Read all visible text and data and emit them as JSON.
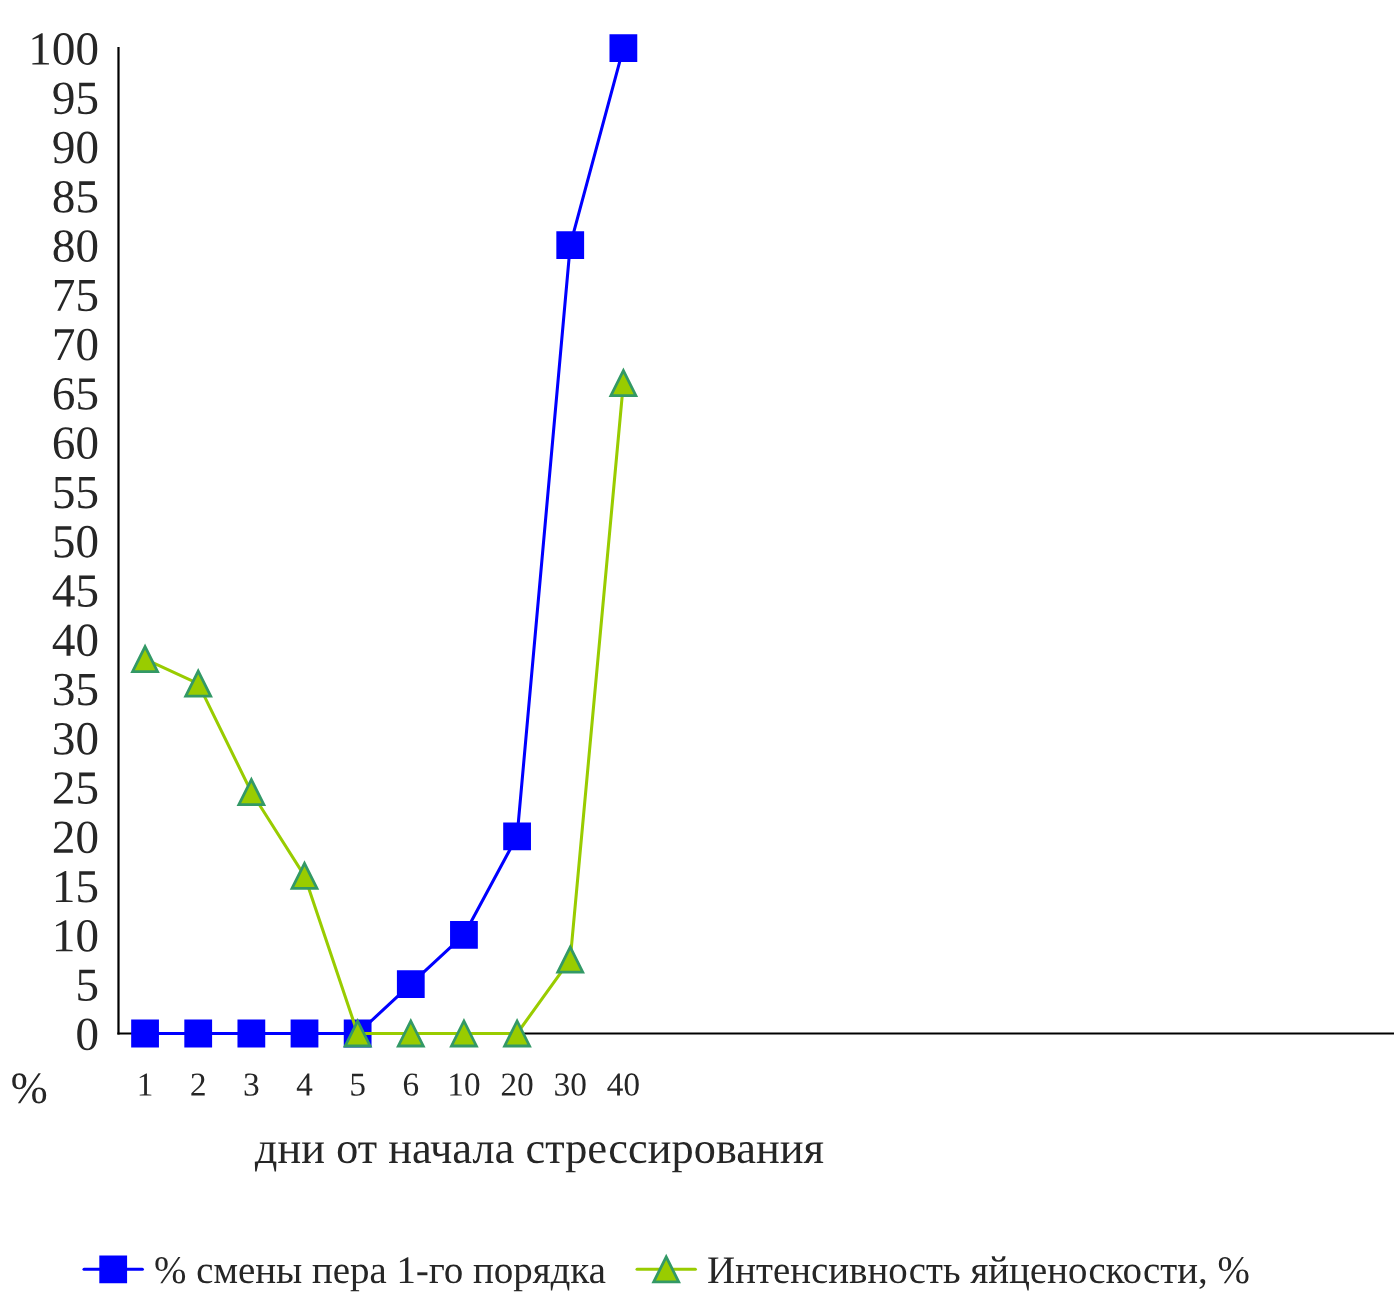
{
  "chart_data": {
    "type": "line",
    "xlabel": "дни от начала стрессирования",
    "ylabel": "%",
    "categories": [
      "1",
      "2",
      "3",
      "4",
      "5",
      "6",
      "10",
      "20",
      "30",
      "40",
      null,
      null,
      null,
      null,
      null,
      null,
      null,
      null,
      null,
      null,
      null,
      null,
      null,
      null
    ],
    "series": [
      {
        "name": "% смены пера 1-го порядка",
        "color": "#0000ff",
        "marker": "square",
        "values": [
          0,
          0,
          0,
          0,
          0,
          5,
          10,
          20,
          80,
          100,
          null,
          null,
          null,
          null,
          null,
          null,
          null,
          null,
          null,
          null,
          null,
          null,
          null,
          null
        ]
      },
      {
        "name": "Интенсивность яйценоскости, %",
        "color": "#99cc00",
        "marker": "triangle",
        "values": [
          38,
          35.5,
          24.5,
          16,
          0,
          0,
          0,
          0,
          7.5,
          66,
          null,
          null,
          null,
          null,
          null,
          null,
          null,
          null,
          null,
          null,
          null,
          null,
          null,
          null
        ]
      }
    ],
    "ylim": [
      0,
      100
    ],
    "yticks": [
      0,
      5,
      10,
      15,
      20,
      25,
      30,
      35,
      40,
      45,
      50,
      55,
      60,
      65,
      70,
      75,
      80,
      85,
      90,
      95,
      100
    ],
    "grid": false,
    "legend": "bottom",
    "line_style": "solid"
  }
}
